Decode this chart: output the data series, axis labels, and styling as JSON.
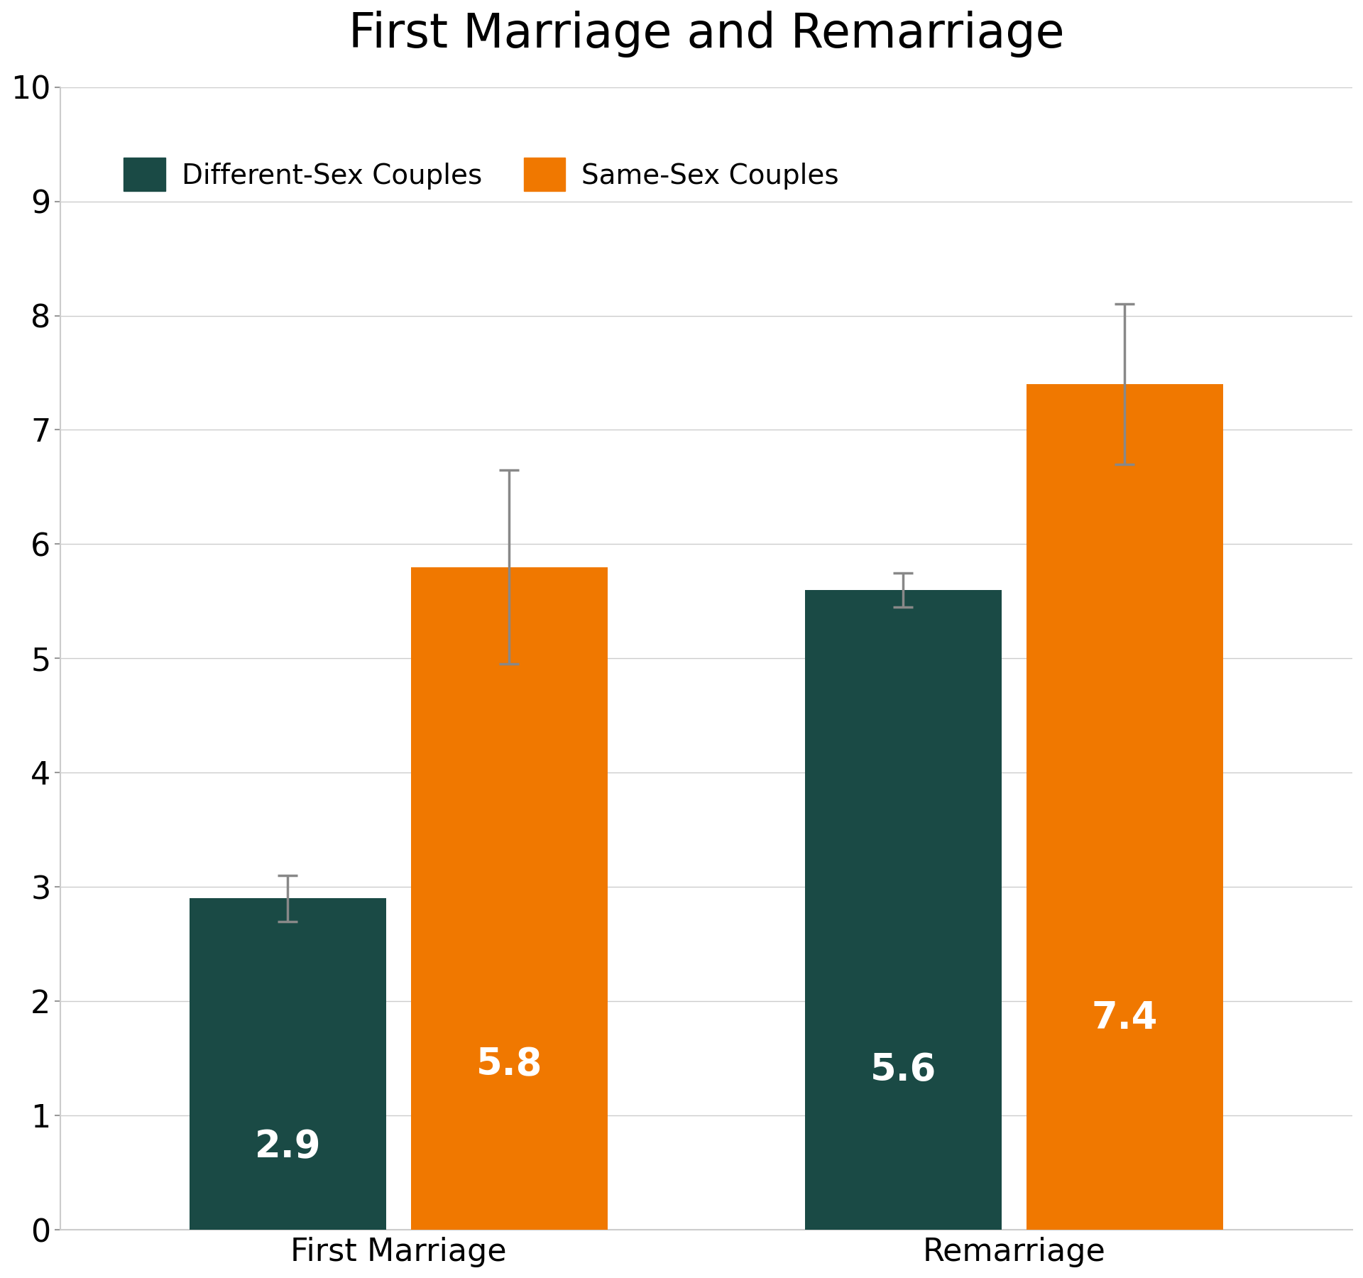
{
  "title": "First Marriage and Remarriage",
  "categories": [
    "First Marriage",
    "Remarriage"
  ],
  "different_sex_values": [
    2.9,
    5.6
  ],
  "same_sex_values": [
    5.8,
    7.4
  ],
  "different_sex_errors": [
    0.2,
    0.15
  ],
  "same_sex_errors": [
    0.85,
    0.7
  ],
  "different_sex_color": "#1a4a45",
  "same_sex_color": "#f07800",
  "error_color": "#888888",
  "background_color": "#ffffff",
  "label_different_sex": "Different-Sex Couples",
  "label_same_sex": "Same-Sex Couples",
  "ylim": [
    0,
    10
  ],
  "yticks": [
    0,
    1,
    2,
    3,
    4,
    5,
    6,
    7,
    8,
    9,
    10
  ],
  "title_fontsize": 48,
  "legend_fontsize": 28,
  "tick_fontsize": 32,
  "bar_label_fontsize_ds": 38,
  "bar_label_fontsize_ss": 38,
  "xlabel_fontsize": 32,
  "bar_width": 0.32,
  "bar_gap": 0.04
}
